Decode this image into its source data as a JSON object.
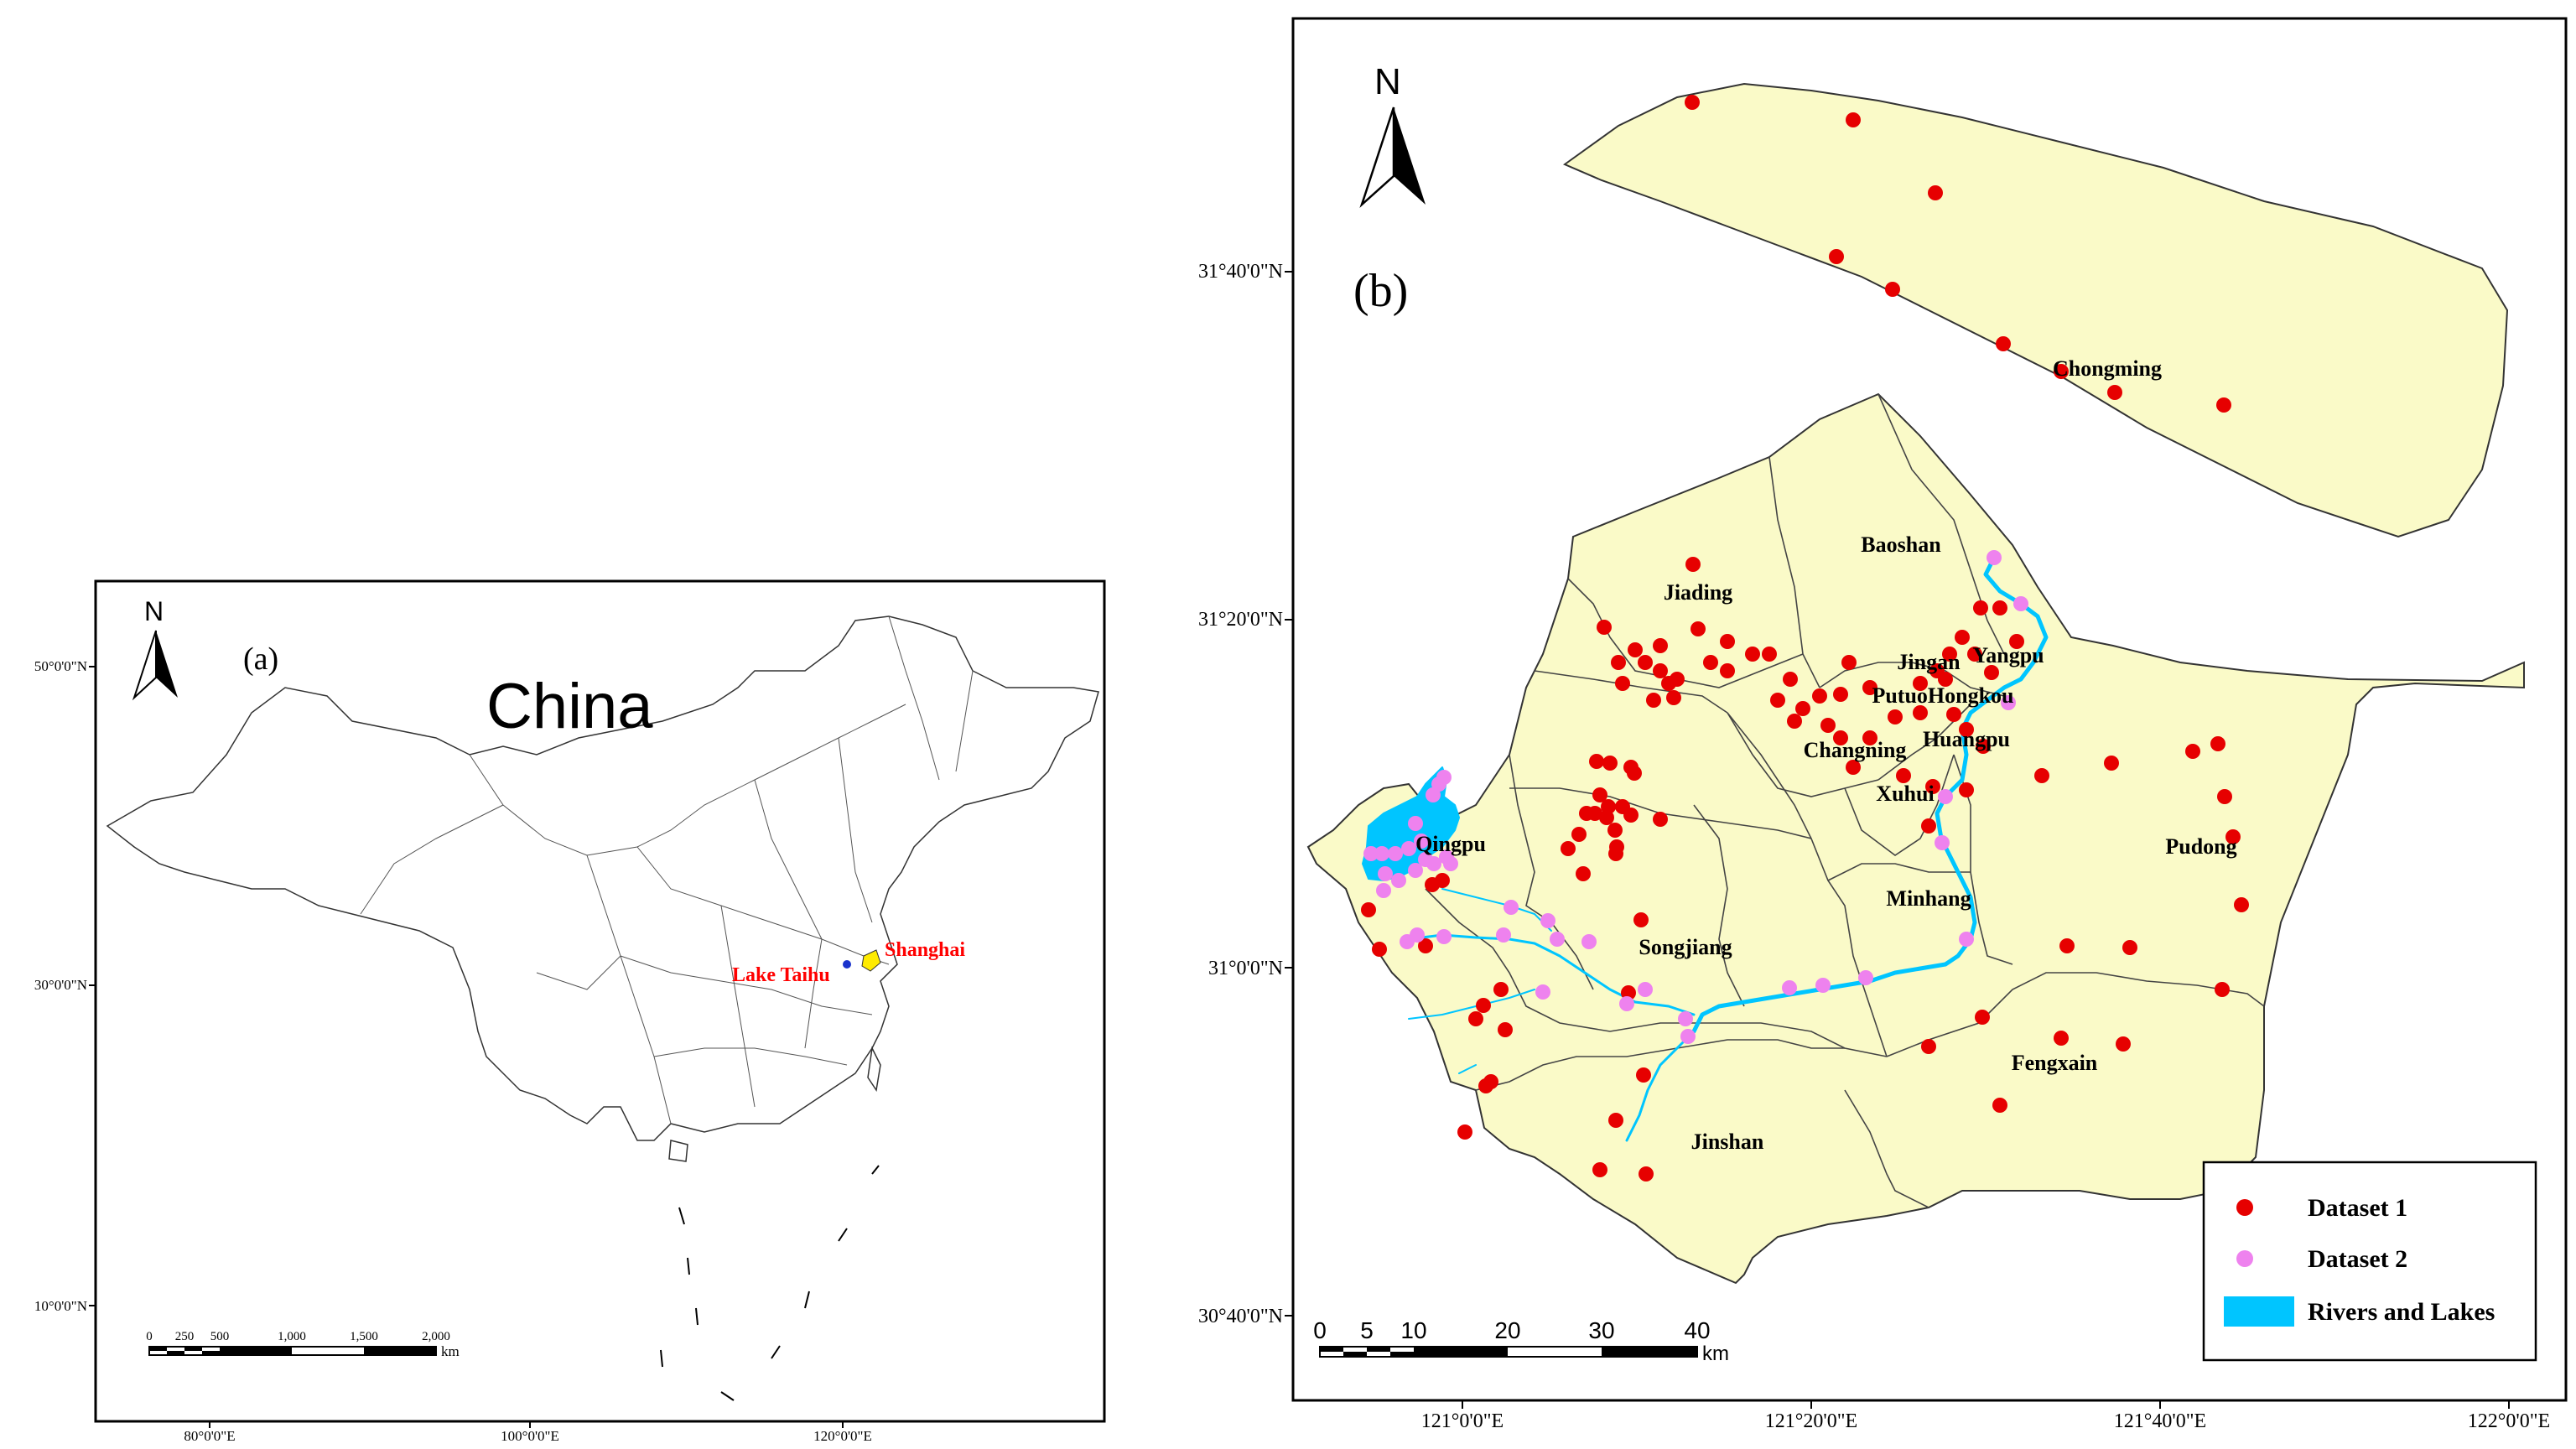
{
  "panel_a": {
    "label": "(a)",
    "country": "China",
    "north": "N",
    "lat_ticks": [
      "50°0'0\"N",
      "30°0'0\"N",
      "10°0'0\"N"
    ],
    "lon_ticks": [
      "80°0'0\"E",
      "100°0'0\"E",
      "120°0'0\"E"
    ],
    "places": {
      "lake": "Lake Taihu",
      "city": "Shanghai"
    },
    "scale": {
      "ticks": [
        "0",
        "250",
        "500",
        "1,000",
        "1,500",
        "2,000"
      ],
      "unit": "km"
    }
  },
  "panel_b": {
    "label": "(b)",
    "north": "N",
    "lat_ticks": [
      "31°40'0\"N",
      "31°20'0\"N",
      "31°0'0\"N",
      "30°40'0\"N"
    ],
    "lon_ticks": [
      "121°0'0\"E",
      "121°20'0\"E",
      "121°40'0\"E",
      "122°0'0\"E"
    ],
    "districts": [
      "Chongming",
      "Baoshan",
      "Jiading",
      "Jingan",
      "Yangpu",
      "PutuoHongkou",
      "Changning",
      "Huangpu",
      "Xuhui",
      "Qingpu",
      "Pudong",
      "Minhang",
      "Songjiang",
      "Fengxain",
      "Jinshan"
    ],
    "scale": {
      "ticks": [
        "0",
        "5",
        "10",
        "20",
        "30",
        "40"
      ],
      "unit": "km"
    },
    "legend": [
      {
        "label": "Dataset 1",
        "color": "#e60000",
        "icon": "dot"
      },
      {
        "label": "Dataset 2",
        "color": "#ee82ee",
        "icon": "dot"
      },
      {
        "label": "Rivers and Lakes",
        "color": "#00c5ff",
        "icon": "rect"
      }
    ]
  }
}
